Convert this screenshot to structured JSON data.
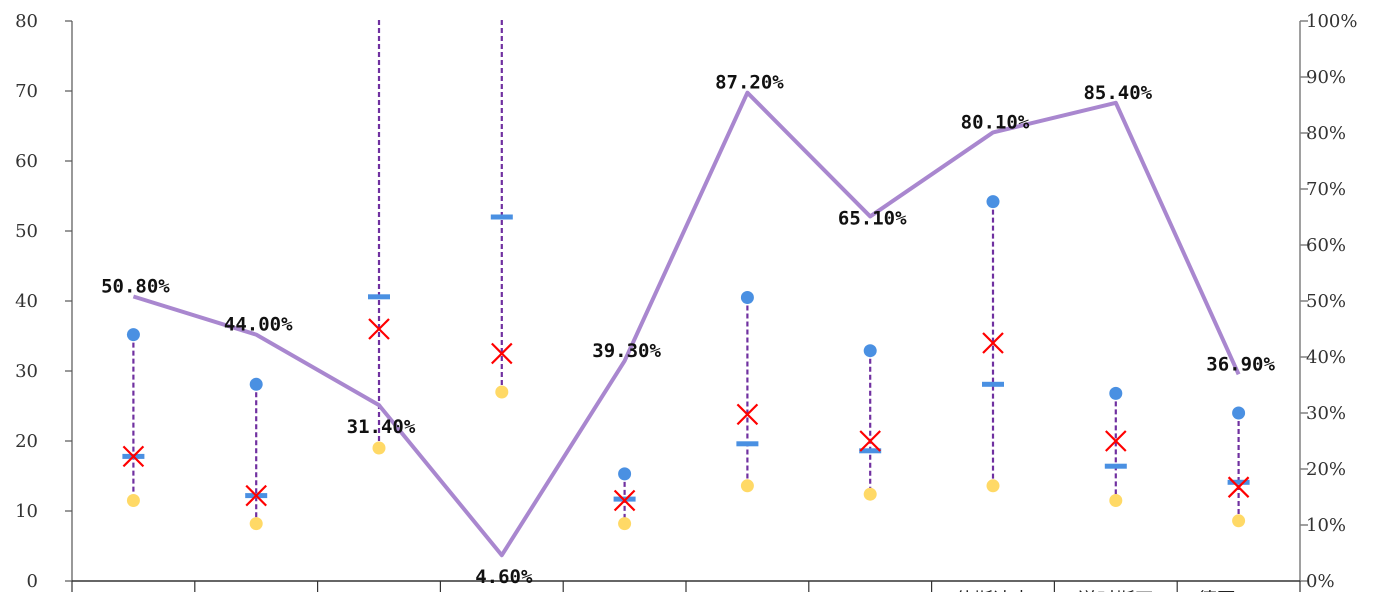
{
  "chart_data": {
    "type": "line",
    "categories": [
      "",
      "",
      "",
      "",
      "",
      "",
      "",
      "",
      "",
      ""
    ],
    "category_labels_visible": [
      "",
      "",
      "",
      "",
      "",
      "",
      "",
      "什斯达克",
      "送时斯四",
      "德国MDA"
    ],
    "left_axis": {
      "ylim": [
        0,
        80
      ],
      "ticks": [
        "0",
        "10",
        "20",
        "30",
        "40",
        "50",
        "60",
        "70",
        "80"
      ]
    },
    "right_axis": {
      "ylim": [
        0,
        1
      ],
      "ticks": [
        "0%",
        "10%",
        "20%",
        "30%",
        "40%",
        "50%",
        "60%",
        "70%",
        "80%",
        "90%",
        "100%"
      ]
    },
    "series": [
      {
        "kind": "high",
        "axis": "left",
        "values": [
          35.2,
          28.1,
          90,
          90,
          15.3,
          40.5,
          32.9,
          54.2,
          26.8,
          24.0
        ]
      },
      {
        "kind": "low",
        "axis": "left",
        "values": [
          11.5,
          8.2,
          19.0,
          27.0,
          8.2,
          13.6,
          12.4,
          13.6,
          11.5,
          8.6
        ]
      },
      {
        "kind": "median",
        "axis": "left",
        "values": [
          17.8,
          12.2,
          40.6,
          52.0,
          11.7,
          19.6,
          18.6,
          28.1,
          16.4,
          14.1
        ]
      },
      {
        "kind": "current",
        "axis": "left",
        "values": [
          17.8,
          12.2,
          36.0,
          32.5,
          11.5,
          23.8,
          20.0,
          34.0,
          20.0,
          13.4
        ]
      },
      {
        "kind": "percentile",
        "axis": "right",
        "values": [
          0.508,
          0.44,
          0.314,
          0.046,
          0.393,
          0.872,
          0.651,
          0.801,
          0.854,
          0.369
        ],
        "labels": [
          "50.80%",
          "44.00%",
          "31.40%",
          "4.60%",
          "39.30%",
          "87.20%",
          "65.10%",
          "80.10%",
          "85.40%",
          "36.90%"
        ]
      }
    ],
    "grid": false,
    "legend": "none",
    "colors": {
      "range_line": "#7030a0",
      "high_dot": "#4a90e2",
      "low_dot": "#ffd966",
      "median": "#4a90e2",
      "current": "#ff0000",
      "percentile_line": "#a987cf",
      "axis": "#808080"
    }
  }
}
